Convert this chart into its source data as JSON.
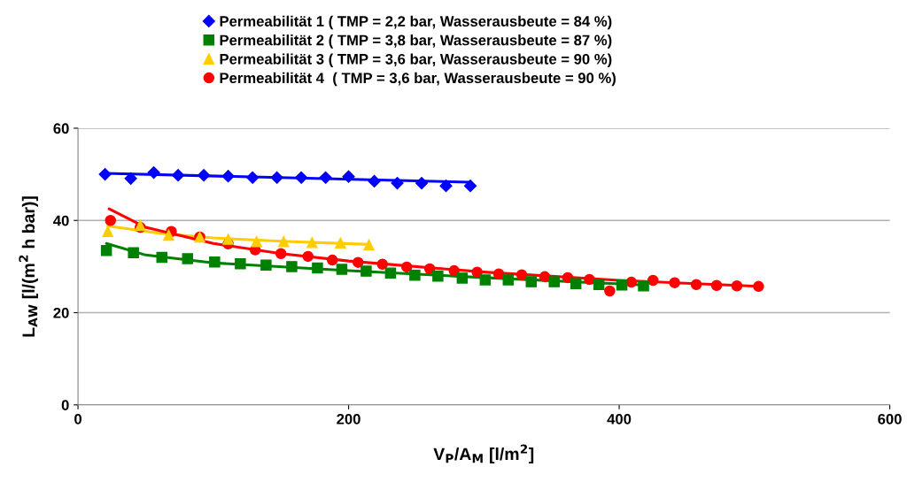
{
  "chart_data": {
    "type": "scatter",
    "xlabel": "V$_{P}$/A$_{M}$ [l/m$^{2}$]",
    "ylabel": "L$_{AW}$ [l/(m$^{2}$ h bar)]",
    "xlim": [
      0,
      600
    ],
    "xticks": [
      0,
      200,
      400,
      600
    ],
    "ylim": [
      0,
      60
    ],
    "yticks": [
      0,
      20,
      40,
      60
    ],
    "grid": "y",
    "legend": "top",
    "series": [
      {
        "name": "Permeabilität 1 ( TMP = 2,2 bar, Wasserausbeute = 84 %)",
        "marker": "diamond",
        "color": "#0000ff",
        "x": [
          20,
          39,
          56,
          74,
          93,
          111,
          129,
          147,
          165,
          183,
          200,
          219,
          236,
          254,
          272,
          290
        ],
        "values": [
          50.0,
          49.1,
          50.4,
          49.8,
          49.8,
          49.6,
          49.3,
          49.3,
          49.3,
          49.3,
          49.5,
          48.5,
          48.1,
          48.1,
          47.5,
          47.5
        ]
      },
      {
        "name": "Permeabilität 2 ( TMP = 3,8 bar, Wasserausbeute = 87 %)",
        "marker": "square",
        "color": "#008000",
        "x": [
          21,
          41,
          62,
          81,
          101,
          120,
          139,
          158,
          177,
          195,
          213,
          231,
          249,
          266,
          284,
          301,
          318,
          335,
          352,
          368,
          385,
          402,
          418
        ],
        "values": [
          33.5,
          33.0,
          32.0,
          31.7,
          31.0,
          30.6,
          30.3,
          30.0,
          29.7,
          29.4,
          29.0,
          28.6,
          28.1,
          27.9,
          27.5,
          27.1,
          27.1,
          26.7,
          26.7,
          26.3,
          26.1,
          26.0,
          25.8
        ]
      },
      {
        "name": "Permeabilität 3 ( TMP = 3,6 bar, Wasserausbeute = 90 %)",
        "marker": "triangle",
        "color": "#ffcc00",
        "x": [
          22,
          46,
          67,
          90,
          111,
          132,
          152,
          173,
          194,
          215
        ],
        "values": [
          37.6,
          38.9,
          36.8,
          36.4,
          35.9,
          35.4,
          35.4,
          35.2,
          35.1,
          34.7
        ]
      },
      {
        "name": "Permeabilität 4  ( TMP = 3,6 bar, Wasserausbeute = 90 %)",
        "marker": "circle",
        "color": "#ff0000",
        "x": [
          24,
          46,
          69,
          90,
          111,
          131,
          150,
          170,
          188,
          207,
          225,
          243,
          260,
          278,
          295,
          311,
          328,
          345,
          362,
          378,
          393,
          409,
          425,
          441,
          457,
          472,
          487,
          503
        ],
        "values": [
          40.0,
          38.5,
          37.6,
          36.4,
          34.9,
          33.6,
          32.8,
          32.2,
          31.4,
          30.9,
          30.5,
          29.9,
          29.5,
          29.1,
          28.8,
          28.4,
          28.2,
          27.8,
          27.6,
          27.2,
          24.7,
          26.6,
          27.0,
          26.5,
          26.1,
          25.9,
          25.8,
          25.7
        ]
      },
      {
        "type": "line",
        "marker": "none",
        "color": "#0000ff",
        "x": [
          20,
          290
        ],
        "values": [
          50.2,
          48.3
        ]
      },
      {
        "type": "line",
        "marker": "none",
        "color": "#008000",
        "x": [
          21,
          50,
          100,
          200,
          300,
          418
        ],
        "values": [
          35.0,
          32.5,
          30.8,
          29.1,
          27.6,
          26.0
        ]
      },
      {
        "type": "line",
        "marker": "none",
        "color": "#ffcc00",
        "x": [
          22,
          60,
          100,
          150,
          215
        ],
        "values": [
          38.8,
          37.2,
          36.2,
          35.5,
          34.8
        ]
      },
      {
        "type": "line",
        "marker": "none",
        "color": "#ff0000",
        "x": [
          23,
          50,
          100,
          150,
          200,
          300,
          400,
          503
        ],
        "values": [
          42.5,
          38.5,
          35.0,
          32.8,
          31.2,
          28.8,
          27.0,
          25.7
        ]
      }
    ]
  }
}
